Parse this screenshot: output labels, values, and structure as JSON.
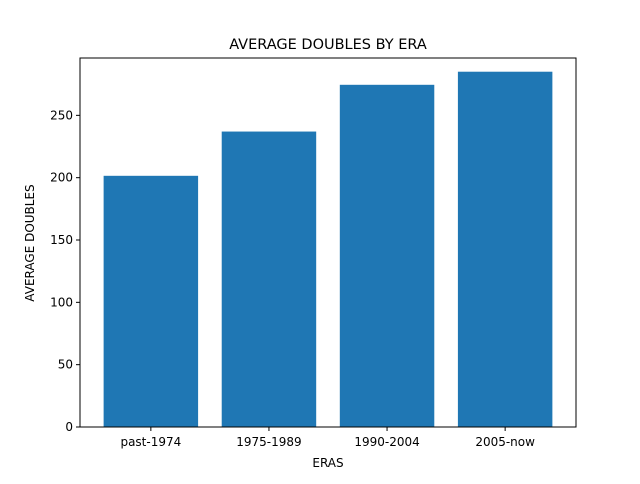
{
  "chart_data": {
    "type": "bar",
    "title": "AVERAGE DOUBLES BY ERA",
    "xlabel": "ERAS",
    "ylabel": "AVERAGE DOUBLES",
    "categories": [
      "past-1974",
      "1975-1989",
      "1990-2004",
      "2005-now"
    ],
    "values": [
      201.5,
      237,
      274.5,
      285
    ],
    "ylim": [
      0,
      296
    ],
    "yticks": [
      0,
      50,
      100,
      150,
      200,
      250
    ],
    "grid": false,
    "legend": "none",
    "bar_color": "#1f77b4"
  }
}
